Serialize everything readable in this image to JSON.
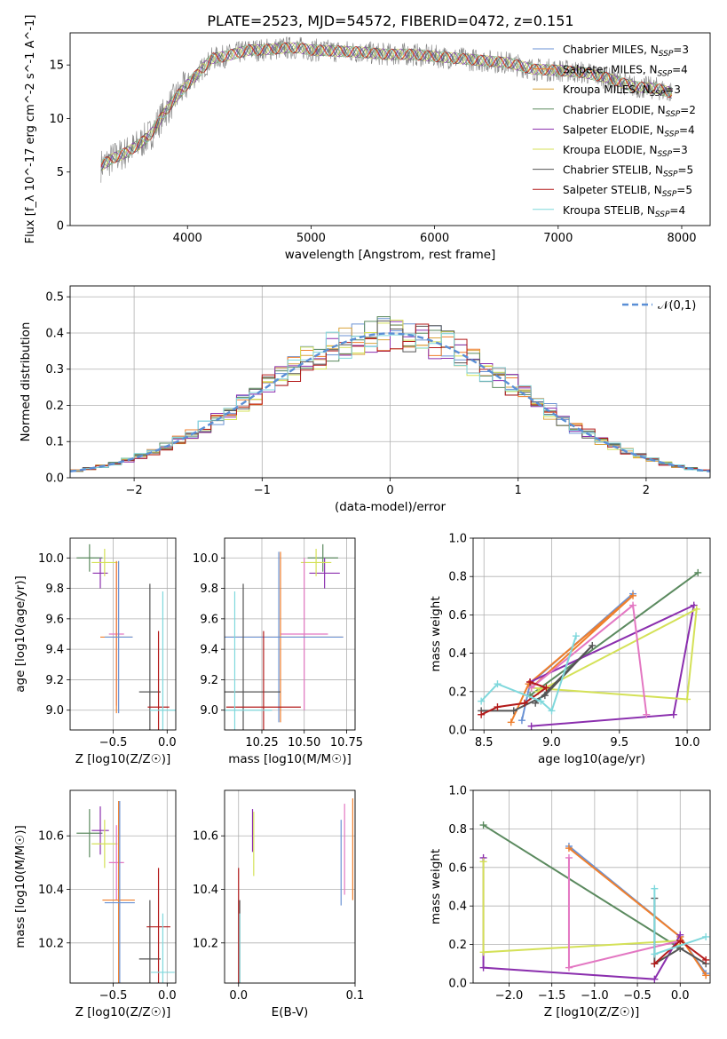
{
  "figure_title": "PLATE=2523, MJD=54572, FIBERID=0472, z=0.151",
  "chart_data": [
    {
      "id": "spectrum",
      "type": "line",
      "title": "PLATE=2523, MJD=54572, FIBERID=0472, z=0.151",
      "xlabel": "wavelength [Angstrom, rest frame]",
      "ylabel": "Flux [f_λ 10^-17 erg cm^-2 s^-1 A^-1]",
      "xlim": [
        3050,
        8230
      ],
      "ylim": [
        0,
        18
      ],
      "xticks": [
        4000,
        5000,
        6000,
        7000,
        8000
      ],
      "yticks": [
        0,
        5,
        10,
        15
      ],
      "data_color": "#808080",
      "x": [
        3300,
        3400,
        3500,
        3600,
        3700,
        3800,
        3900,
        4000,
        4100,
        4200,
        4300,
        4400,
        4500,
        4600,
        4700,
        4800,
        4900,
        5000,
        5200,
        5400,
        5600,
        5800,
        6000,
        6200,
        6400,
        6600,
        6800,
        7000,
        7200,
        7400,
        7600,
        7800,
        7920
      ],
      "y": [
        5.6,
        6.3,
        6.8,
        7.5,
        8.5,
        10.3,
        11.9,
        13.2,
        14.4,
        15.6,
        15.8,
        16.1,
        16.4,
        16.4,
        16.5,
        16.6,
        16.6,
        16.4,
        16.3,
        16.2,
        16.0,
        16.0,
        15.8,
        15.6,
        15.4,
        15.2,
        14.6,
        14.5,
        14.3,
        13.8,
        13.0,
        12.8,
        12.4
      ],
      "legend": [
        {
          "label": "Chabrier MILES, N",
          "sub": "SSP",
          "suffix": "=3",
          "color": "#6a92d4"
        },
        {
          "label": "Salpeter MILES, N",
          "sub": "SSP",
          "suffix": "=4",
          "color": "#ef7f2d"
        },
        {
          "label": "Kroupa MILES, N",
          "sub": "SSP",
          "suffix": "=3",
          "color": "#d9a33c"
        },
        {
          "label": "Chabrier ELODIE, N",
          "sub": "SSP",
          "suffix": "=2",
          "color": "#5b8a5f"
        },
        {
          "label": "Salpeter ELODIE, N",
          "sub": "SSP",
          "suffix": "=4",
          "color": "#8b2fae"
        },
        {
          "label": "Kroupa ELODIE, N",
          "sub": "SSP",
          "suffix": "=3",
          "color": "#d4e157"
        },
        {
          "label": "Chabrier STELIB, N",
          "sub": "SSP",
          "suffix": "=5",
          "color": "#555555"
        },
        {
          "label": "Salpeter STELIB, N",
          "sub": "SSP",
          "suffix": "=5",
          "color": "#b31a1a"
        },
        {
          "label": "Kroupa STELIB, N",
          "sub": "SSP",
          "suffix": "=4",
          "color": "#7fd8dc"
        }
      ],
      "grid": false
    },
    {
      "id": "residuals",
      "type": "line",
      "xlabel": "(data-model)/error",
      "ylabel": "Normed distribution",
      "xlim": [
        -2.5,
        2.5
      ],
      "ylim": [
        0,
        0.53
      ],
      "xticks": [
        -2,
        -1,
        0,
        1,
        2
      ],
      "yticks": [
        0.0,
        0.1,
        0.2,
        0.3,
        0.4,
        0.5
      ],
      "legend_label": "𝒩(0,1)",
      "grid": true,
      "histogram_bins": [
        -2.5,
        2.5,
        50
      ],
      "normal_reference": {
        "mean": 0,
        "sigma": 1
      }
    },
    {
      "id": "age-vs-Z",
      "type": "scatter",
      "xlabel": "Z [log10(Z/Z☉)]",
      "ylabel": "age [log10(age/yr)]",
      "xlim": [
        -0.9,
        0.08
      ],
      "ylim": [
        8.87,
        10.13
      ],
      "xticks": [
        -0.5,
        0.0
      ],
      "yticks": [
        9.0,
        9.2,
        9.4,
        9.6,
        9.8,
        10.0
      ],
      "grid": true,
      "points": [
        {
          "x": -0.72,
          "y": 10.0,
          "xerr": 0.12,
          "yerr": 0.09,
          "color": "#5b8a5f"
        },
        {
          "x": -0.62,
          "y": 9.9,
          "xerr": 0.07,
          "yerr": 0.1,
          "color": "#8b2fae"
        },
        {
          "x": -0.58,
          "y": 9.97,
          "xerr": 0.12,
          "yerr": 0.09,
          "color": "#d4e157"
        },
        {
          "x": -0.47,
          "y": 9.5,
          "xerr": 0.07,
          "yerr": 0.47,
          "color": "#e377c2"
        },
        {
          "x": -0.47,
          "y": 9.48,
          "xerr": 0.15,
          "yerr": 0.5,
          "color": "#ef7f2d"
        },
        {
          "x": -0.45,
          "y": 9.48,
          "xerr": 0.13,
          "yerr": 0.5,
          "color": "#6a92d4"
        },
        {
          "x": -0.16,
          "y": 9.12,
          "xerr": 0.1,
          "yerr": 0.71,
          "color": "#555555"
        },
        {
          "x": -0.08,
          "y": 9.02,
          "xerr": 0.1,
          "yerr": 0.5,
          "color": "#b31a1a"
        },
        {
          "x": -0.04,
          "y": 9.0,
          "xerr": 0.12,
          "yerr": 0.78,
          "color": "#7fd8dc"
        }
      ]
    },
    {
      "id": "age-vs-mass",
      "type": "scatter",
      "xlabel": "mass [log10(M/M☉)]",
      "ylabel": "",
      "xlim": [
        10.03,
        10.8
      ],
      "ylim": [
        8.87,
        10.13
      ],
      "xticks": [
        10.25,
        10.5,
        10.75
      ],
      "yticks": [
        9.0,
        9.2,
        9.4,
        9.6,
        9.8,
        10.0
      ],
      "grid": true,
      "points": [
        {
          "x": 10.61,
          "y": 10.0,
          "xerr": 0.09,
          "yerr": 0.09,
          "color": "#5b8a5f"
        },
        {
          "x": 10.62,
          "y": 9.9,
          "xerr": 0.09,
          "yerr": 0.1,
          "color": "#8b2fae"
        },
        {
          "x": 10.57,
          "y": 9.97,
          "xerr": 0.09,
          "yerr": 0.09,
          "color": "#d4e157"
        },
        {
          "x": 10.5,
          "y": 9.5,
          "xerr": 0.14,
          "yerr": 0.5,
          "color": "#e377c2"
        },
        {
          "x": 10.36,
          "y": 9.48,
          "xerr": 0.37,
          "yerr": 0.56,
          "color": "#ef7f2d"
        },
        {
          "x": 10.35,
          "y": 9.48,
          "xerr": 0.38,
          "yerr": 0.56,
          "color": "#6a92d4"
        },
        {
          "x": 10.14,
          "y": 9.12,
          "xerr": 0.22,
          "yerr": 0.71,
          "color": "#555555"
        },
        {
          "x": 10.26,
          "y": 9.02,
          "xerr": 0.22,
          "yerr": 0.5,
          "color": "#b31a1a"
        },
        {
          "x": 10.09,
          "y": 9.0,
          "xerr": 0.22,
          "yerr": 0.78,
          "color": "#7fd8dc"
        }
      ]
    },
    {
      "id": "weight-vs-age",
      "type": "line",
      "xlabel": "age log10(age/yr)",
      "ylabel": "mass weight",
      "xlim": [
        8.42,
        10.17
      ],
      "ylim": [
        0,
        1.0
      ],
      "xticks": [
        8.5,
        9.0,
        9.5,
        10.0
      ],
      "yticks": [
        0.0,
        0.2,
        0.4,
        0.6,
        0.8,
        1.0
      ],
      "grid": true,
      "series": [
        {
          "color": "#6a92d4",
          "x": [
            8.78,
            8.84,
            9.6
          ],
          "y": [
            0.05,
            0.24,
            0.71
          ]
        },
        {
          "color": "#ef7f2d",
          "x": [
            8.7,
            8.83,
            9.6,
            8.85
          ],
          "y": [
            0.04,
            0.24,
            0.7,
            0.22
          ]
        },
        {
          "color": "#5b8a5f",
          "x": [
            8.84,
            10.08
          ],
          "y": [
            0.18,
            0.82
          ]
        },
        {
          "color": "#8b2fae",
          "x": [
            8.85,
            9.9,
            10.05,
            8.84
          ],
          "y": [
            0.02,
            0.08,
            0.65,
            0.25
          ]
        },
        {
          "color": "#d4e157",
          "x": [
            8.85,
            10.0,
            10.07,
            8.9
          ],
          "y": [
            0.22,
            0.16,
            0.63,
            0.2
          ]
        },
        {
          "color": "#e377c2",
          "x": [
            8.85,
            9.6,
            9.7
          ],
          "y": [
            0.22,
            0.65,
            0.08
          ]
        },
        {
          "color": "#555555",
          "x": [
            8.48,
            8.72,
            8.95,
            9.3,
            8.88
          ],
          "y": [
            0.1,
            0.1,
            0.18,
            0.44,
            0.14
          ]
        },
        {
          "color": "#b31a1a",
          "x": [
            8.48,
            8.6,
            8.8,
            8.96,
            8.84
          ],
          "y": [
            0.08,
            0.12,
            0.14,
            0.22,
            0.25
          ]
        },
        {
          "color": "#7fd8dc",
          "x": [
            8.48,
            8.6,
            8.92,
            9.0,
            9.18
          ],
          "y": [
            0.15,
            0.24,
            0.15,
            0.1,
            0.49
          ]
        }
      ]
    },
    {
      "id": "mass-vs-Z",
      "type": "scatter",
      "xlabel": "Z [log10(Z/Z☉)]",
      "ylabel": "mass [log10(M/M☉)]",
      "xlim": [
        -0.9,
        0.08
      ],
      "ylim": [
        10.05,
        10.77
      ],
      "xticks": [
        -0.5,
        0.0
      ],
      "yticks": [
        10.2,
        10.4,
        10.6
      ],
      "grid": true,
      "points": [
        {
          "x": -0.72,
          "y": 10.61,
          "xerr": 0.12,
          "yerr": 0.09,
          "color": "#5b8a5f"
        },
        {
          "x": -0.62,
          "y": 10.62,
          "xerr": 0.08,
          "yerr": 0.09,
          "color": "#8b2fae"
        },
        {
          "x": -0.58,
          "y": 10.57,
          "xerr": 0.12,
          "yerr": 0.09,
          "color": "#d4e157"
        },
        {
          "x": -0.47,
          "y": 10.5,
          "xerr": 0.07,
          "yerr": 0.14,
          "color": "#e377c2"
        },
        {
          "x": -0.45,
          "y": 10.36,
          "xerr": 0.15,
          "yerr": 0.37,
          "color": "#ef7f2d"
        },
        {
          "x": -0.44,
          "y": 10.35,
          "xerr": 0.14,
          "yerr": 0.38,
          "color": "#6a92d4"
        },
        {
          "x": -0.16,
          "y": 10.14,
          "xerr": 0.1,
          "yerr": 0.22,
          "color": "#555555"
        },
        {
          "x": -0.08,
          "y": 10.26,
          "xerr": 0.11,
          "yerr": 0.22,
          "color": "#b31a1a"
        },
        {
          "x": -0.04,
          "y": 10.09,
          "xerr": 0.11,
          "yerr": 0.22,
          "color": "#7fd8dc"
        }
      ]
    },
    {
      "id": "mass-vs-EBV",
      "type": "scatter",
      "xlabel": "E(B-V)",
      "ylabel": "",
      "xlim": [
        -0.012,
        0.1
      ],
      "ylim": [
        10.05,
        10.77
      ],
      "xticks": [
        0.0,
        0.1
      ],
      "yticks": [
        10.2,
        10.4,
        10.6
      ],
      "grid": true,
      "points": [
        {
          "x": 0.0,
          "y": 10.26,
          "xerr": 0,
          "yerr": 0.22,
          "color": "#b31a1a"
        },
        {
          "x": 0.001,
          "y": 10.14,
          "xerr": 0,
          "yerr": 0.22,
          "color": "#555555"
        },
        {
          "x": 0.001,
          "y": 10.09,
          "xerr": 0,
          "yerr": 0.22,
          "color": "#7fd8dc"
        },
        {
          "x": 0.012,
          "y": 10.62,
          "xerr": 0,
          "yerr": 0.08,
          "color": "#8b2fae"
        },
        {
          "x": 0.013,
          "y": 10.57,
          "xerr": 0,
          "yerr": 0.12,
          "color": "#d4e157"
        },
        {
          "x": 0.088,
          "y": 10.5,
          "xerr": 0,
          "yerr": 0.16,
          "color": "#6a92d4"
        },
        {
          "x": 0.091,
          "y": 10.55,
          "xerr": 0,
          "yerr": 0.17,
          "color": "#e377c2"
        },
        {
          "x": 0.098,
          "y": 10.55,
          "xerr": 0,
          "yerr": 0.19,
          "color": "#ef7f2d"
        }
      ]
    },
    {
      "id": "weight-vs-Z",
      "type": "line",
      "xlabel": "Z [log10(Z/Z☉)]",
      "ylabel": "mass weight",
      "xlim": [
        -2.42,
        0.35
      ],
      "ylim": [
        0,
        1.0
      ],
      "xticks": [
        -2.0,
        -1.5,
        -1.0,
        -0.5,
        0.0
      ],
      "yticks": [
        0.0,
        0.2,
        0.4,
        0.6,
        0.8,
        1.0
      ],
      "grid": true,
      "series": [
        {
          "color": "#6a92d4",
          "x": [
            -1.3,
            0.0,
            0.3
          ],
          "y": [
            0.71,
            0.24,
            0.05
          ]
        },
        {
          "color": "#ef7f2d",
          "x": [
            -1.3,
            0.0,
            0.3
          ],
          "y": [
            0.7,
            0.24,
            0.04
          ]
        },
        {
          "color": "#5b8a5f",
          "x": [
            -2.3,
            0.0
          ],
          "y": [
            0.82,
            0.18
          ]
        },
        {
          "color": "#8b2fae",
          "x": [
            -2.3,
            -2.3,
            -0.3,
            0.0
          ],
          "y": [
            0.65,
            0.08,
            0.02,
            0.25
          ]
        },
        {
          "color": "#d4e157",
          "x": [
            -2.3,
            -2.3,
            0.0,
            0.0
          ],
          "y": [
            0.63,
            0.16,
            0.22,
            0.2
          ]
        },
        {
          "color": "#e377c2",
          "x": [
            -1.3,
            -1.3,
            0.0
          ],
          "y": [
            0.65,
            0.08,
            0.22
          ]
        },
        {
          "color": "#555555",
          "x": [
            -0.3,
            -0.3,
            0.0,
            0.3
          ],
          "y": [
            0.44,
            0.1,
            0.18,
            0.1
          ]
        },
        {
          "color": "#b31a1a",
          "x": [
            -0.3,
            0.0,
            0.3
          ],
          "y": [
            0.1,
            0.22,
            0.12
          ]
        },
        {
          "color": "#7fd8dc",
          "x": [
            -0.3,
            -0.3,
            0.3
          ],
          "y": [
            0.49,
            0.15,
            0.24
          ]
        }
      ]
    }
  ]
}
